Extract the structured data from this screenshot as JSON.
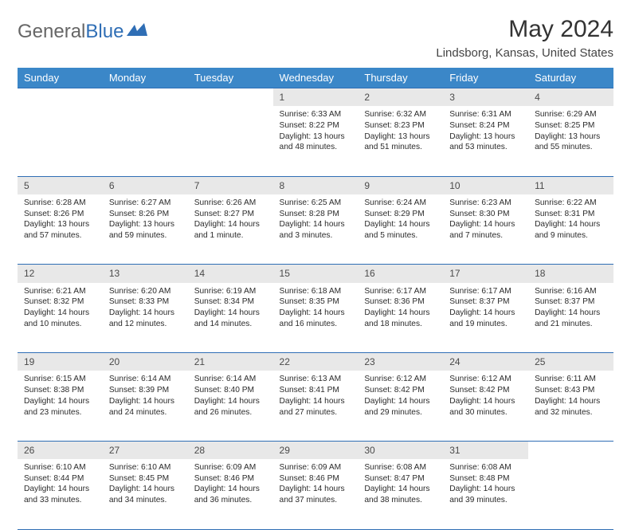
{
  "logo": {
    "text1": "General",
    "text2": "Blue"
  },
  "title": "May 2024",
  "subtitle": "Lindsborg, Kansas, United States",
  "colors": {
    "header_bg": "#3b87c8",
    "border": "#2f6eb5",
    "daynum_bg": "#e8e8e8",
    "page_bg": "#ffffff",
    "text": "#222222"
  },
  "weekdays": [
    "Sunday",
    "Monday",
    "Tuesday",
    "Wednesday",
    "Thursday",
    "Friday",
    "Saturday"
  ],
  "weeks": [
    {
      "nums": [
        "",
        "",
        "",
        "1",
        "2",
        "3",
        "4"
      ],
      "cells": [
        null,
        null,
        null,
        {
          "sunrise": "6:33 AM",
          "sunset": "8:22 PM",
          "d1": "Daylight: 13 hours",
          "d2": "and 48 minutes."
        },
        {
          "sunrise": "6:32 AM",
          "sunset": "8:23 PM",
          "d1": "Daylight: 13 hours",
          "d2": "and 51 minutes."
        },
        {
          "sunrise": "6:31 AM",
          "sunset": "8:24 PM",
          "d1": "Daylight: 13 hours",
          "d2": "and 53 minutes."
        },
        {
          "sunrise": "6:29 AM",
          "sunset": "8:25 PM",
          "d1": "Daylight: 13 hours",
          "d2": "and 55 minutes."
        }
      ]
    },
    {
      "nums": [
        "5",
        "6",
        "7",
        "8",
        "9",
        "10",
        "11"
      ],
      "cells": [
        {
          "sunrise": "6:28 AM",
          "sunset": "8:26 PM",
          "d1": "Daylight: 13 hours",
          "d2": "and 57 minutes."
        },
        {
          "sunrise": "6:27 AM",
          "sunset": "8:26 PM",
          "d1": "Daylight: 13 hours",
          "d2": "and 59 minutes."
        },
        {
          "sunrise": "6:26 AM",
          "sunset": "8:27 PM",
          "d1": "Daylight: 14 hours",
          "d2": "and 1 minute."
        },
        {
          "sunrise": "6:25 AM",
          "sunset": "8:28 PM",
          "d1": "Daylight: 14 hours",
          "d2": "and 3 minutes."
        },
        {
          "sunrise": "6:24 AM",
          "sunset": "8:29 PM",
          "d1": "Daylight: 14 hours",
          "d2": "and 5 minutes."
        },
        {
          "sunrise": "6:23 AM",
          "sunset": "8:30 PM",
          "d1": "Daylight: 14 hours",
          "d2": "and 7 minutes."
        },
        {
          "sunrise": "6:22 AM",
          "sunset": "8:31 PM",
          "d1": "Daylight: 14 hours",
          "d2": "and 9 minutes."
        }
      ]
    },
    {
      "nums": [
        "12",
        "13",
        "14",
        "15",
        "16",
        "17",
        "18"
      ],
      "cells": [
        {
          "sunrise": "6:21 AM",
          "sunset": "8:32 PM",
          "d1": "Daylight: 14 hours",
          "d2": "and 10 minutes."
        },
        {
          "sunrise": "6:20 AM",
          "sunset": "8:33 PM",
          "d1": "Daylight: 14 hours",
          "d2": "and 12 minutes."
        },
        {
          "sunrise": "6:19 AM",
          "sunset": "8:34 PM",
          "d1": "Daylight: 14 hours",
          "d2": "and 14 minutes."
        },
        {
          "sunrise": "6:18 AM",
          "sunset": "8:35 PM",
          "d1": "Daylight: 14 hours",
          "d2": "and 16 minutes."
        },
        {
          "sunrise": "6:17 AM",
          "sunset": "8:36 PM",
          "d1": "Daylight: 14 hours",
          "d2": "and 18 minutes."
        },
        {
          "sunrise": "6:17 AM",
          "sunset": "8:37 PM",
          "d1": "Daylight: 14 hours",
          "d2": "and 19 minutes."
        },
        {
          "sunrise": "6:16 AM",
          "sunset": "8:37 PM",
          "d1": "Daylight: 14 hours",
          "d2": "and 21 minutes."
        }
      ]
    },
    {
      "nums": [
        "19",
        "20",
        "21",
        "22",
        "23",
        "24",
        "25"
      ],
      "cells": [
        {
          "sunrise": "6:15 AM",
          "sunset": "8:38 PM",
          "d1": "Daylight: 14 hours",
          "d2": "and 23 minutes."
        },
        {
          "sunrise": "6:14 AM",
          "sunset": "8:39 PM",
          "d1": "Daylight: 14 hours",
          "d2": "and 24 minutes."
        },
        {
          "sunrise": "6:14 AM",
          "sunset": "8:40 PM",
          "d1": "Daylight: 14 hours",
          "d2": "and 26 minutes."
        },
        {
          "sunrise": "6:13 AM",
          "sunset": "8:41 PM",
          "d1": "Daylight: 14 hours",
          "d2": "and 27 minutes."
        },
        {
          "sunrise": "6:12 AM",
          "sunset": "8:42 PM",
          "d1": "Daylight: 14 hours",
          "d2": "and 29 minutes."
        },
        {
          "sunrise": "6:12 AM",
          "sunset": "8:42 PM",
          "d1": "Daylight: 14 hours",
          "d2": "and 30 minutes."
        },
        {
          "sunrise": "6:11 AM",
          "sunset": "8:43 PM",
          "d1": "Daylight: 14 hours",
          "d2": "and 32 minutes."
        }
      ]
    },
    {
      "nums": [
        "26",
        "27",
        "28",
        "29",
        "30",
        "31",
        ""
      ],
      "cells": [
        {
          "sunrise": "6:10 AM",
          "sunset": "8:44 PM",
          "d1": "Daylight: 14 hours",
          "d2": "and 33 minutes."
        },
        {
          "sunrise": "6:10 AM",
          "sunset": "8:45 PM",
          "d1": "Daylight: 14 hours",
          "d2": "and 34 minutes."
        },
        {
          "sunrise": "6:09 AM",
          "sunset": "8:46 PM",
          "d1": "Daylight: 14 hours",
          "d2": "and 36 minutes."
        },
        {
          "sunrise": "6:09 AM",
          "sunset": "8:46 PM",
          "d1": "Daylight: 14 hours",
          "d2": "and 37 minutes."
        },
        {
          "sunrise": "6:08 AM",
          "sunset": "8:47 PM",
          "d1": "Daylight: 14 hours",
          "d2": "and 38 minutes."
        },
        {
          "sunrise": "6:08 AM",
          "sunset": "8:48 PM",
          "d1": "Daylight: 14 hours",
          "d2": "and 39 minutes."
        },
        null
      ]
    }
  ]
}
